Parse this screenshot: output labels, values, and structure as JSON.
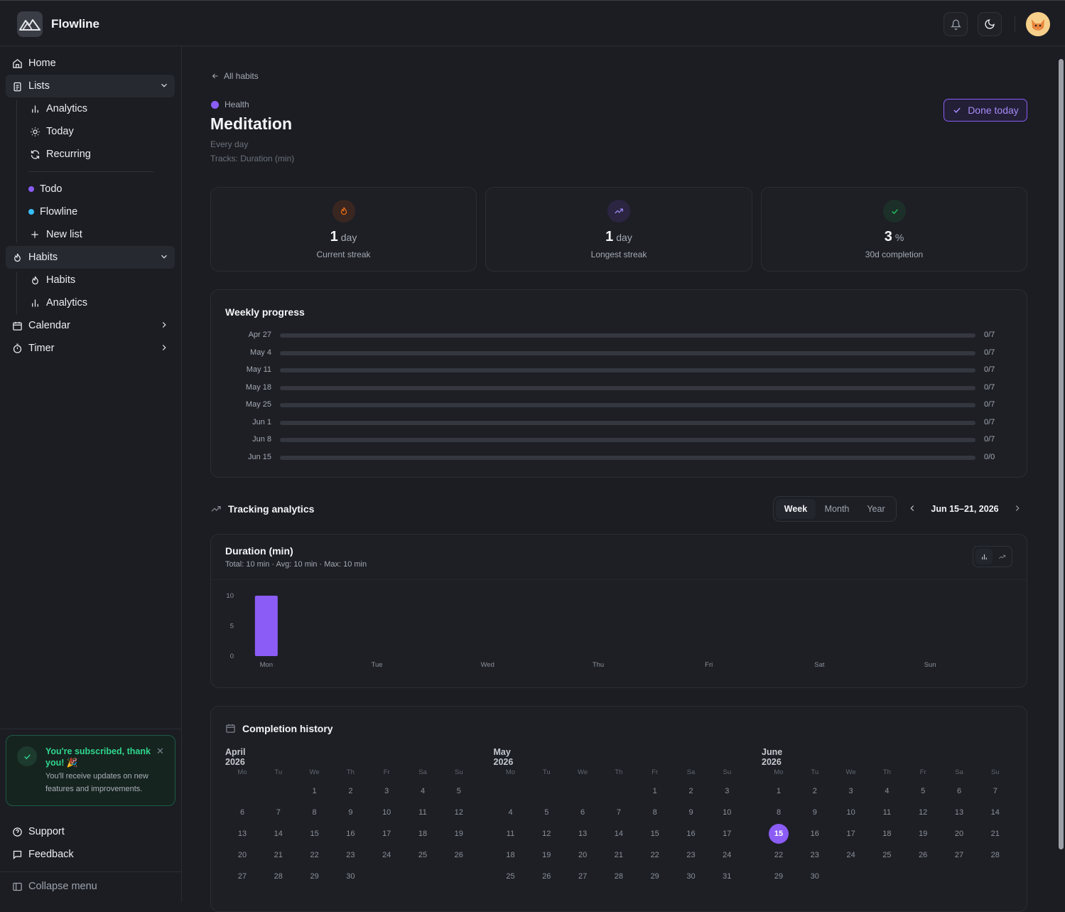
{
  "app": {
    "title": "Flowline"
  },
  "sidebar": {
    "home": "Home",
    "lists": {
      "label": "Lists",
      "items": [
        "Analytics",
        "Today",
        "Recurring"
      ],
      "user_lists": [
        {
          "label": "Todo",
          "color": "#8b5cf6"
        },
        {
          "label": "Flowline",
          "color": "#38bdf8"
        }
      ],
      "new_list": "New list"
    },
    "habits": {
      "label": "Habits",
      "items": [
        "Habits",
        "Analytics"
      ]
    },
    "calendar": "Calendar",
    "timer": "Timer",
    "toast": {
      "title": "You're subscribed, thank you! 🎉",
      "body": "You'll receive updates on new features and improvements."
    },
    "support": "Support",
    "feedback": "Feedback",
    "collapse": "Collapse menu"
  },
  "habit": {
    "back": "All habits",
    "category": "Health",
    "category_color": "#8b5cf6",
    "title": "Meditation",
    "frequency": "Every day",
    "tracks": "Tracks: Duration (min)",
    "done_label": "Done today"
  },
  "stats": [
    {
      "value": "1",
      "unit": "day",
      "label": "Current streak",
      "icon": "flame-icon",
      "color": "#f97316"
    },
    {
      "value": "1",
      "unit": "day",
      "label": "Longest streak",
      "icon": "trending-up-icon",
      "color": "#a78bfa"
    },
    {
      "value": "3",
      "unit": "%",
      "label": "30d completion",
      "icon": "check-icon",
      "color": "#22c55e"
    }
  ],
  "weekly": {
    "title": "Weekly progress",
    "rows": [
      {
        "label": "Apr 27",
        "value": "0/7",
        "fraction": 0
      },
      {
        "label": "May 4",
        "value": "0/7",
        "fraction": 0
      },
      {
        "label": "May 11",
        "value": "0/7",
        "fraction": 0
      },
      {
        "label": "May 18",
        "value": "0/7",
        "fraction": 0
      },
      {
        "label": "May 25",
        "value": "0/7",
        "fraction": 0
      },
      {
        "label": "Jun 1",
        "value": "0/7",
        "fraction": 0
      },
      {
        "label": "Jun 8",
        "value": "0/7",
        "fraction": 0
      },
      {
        "label": "Jun 15",
        "value": "0/0",
        "fraction": 0
      }
    ]
  },
  "analytics": {
    "title": "Tracking analytics",
    "periods": [
      "Week",
      "Month",
      "Year"
    ],
    "selected_period": "Week",
    "range": "Jun 15–21, 2026"
  },
  "chart_data": {
    "type": "bar",
    "title": "Duration (min)",
    "subtitle": "Total: 10 min · Avg: 10 min · Max: 10 min",
    "categories": [
      "Mon",
      "Tue",
      "Wed",
      "Thu",
      "Fri",
      "Sat",
      "Sun"
    ],
    "values": [
      10,
      0,
      0,
      0,
      0,
      0,
      0
    ],
    "yticks": [
      0,
      5,
      10
    ],
    "ylim": [
      0,
      10
    ],
    "color": "#8b5cf6"
  },
  "history": {
    "title": "Completion history",
    "weekdays": [
      "Mo",
      "Tu",
      "We",
      "Th",
      "Fr",
      "Sa",
      "Su"
    ],
    "months": [
      {
        "label": "April 2026",
        "offset": 2,
        "days": 30
      },
      {
        "label": "May 2026",
        "offset": 4,
        "days": 31
      },
      {
        "label": "June 2026",
        "offset": 0,
        "days": 30,
        "today": 15
      }
    ]
  }
}
